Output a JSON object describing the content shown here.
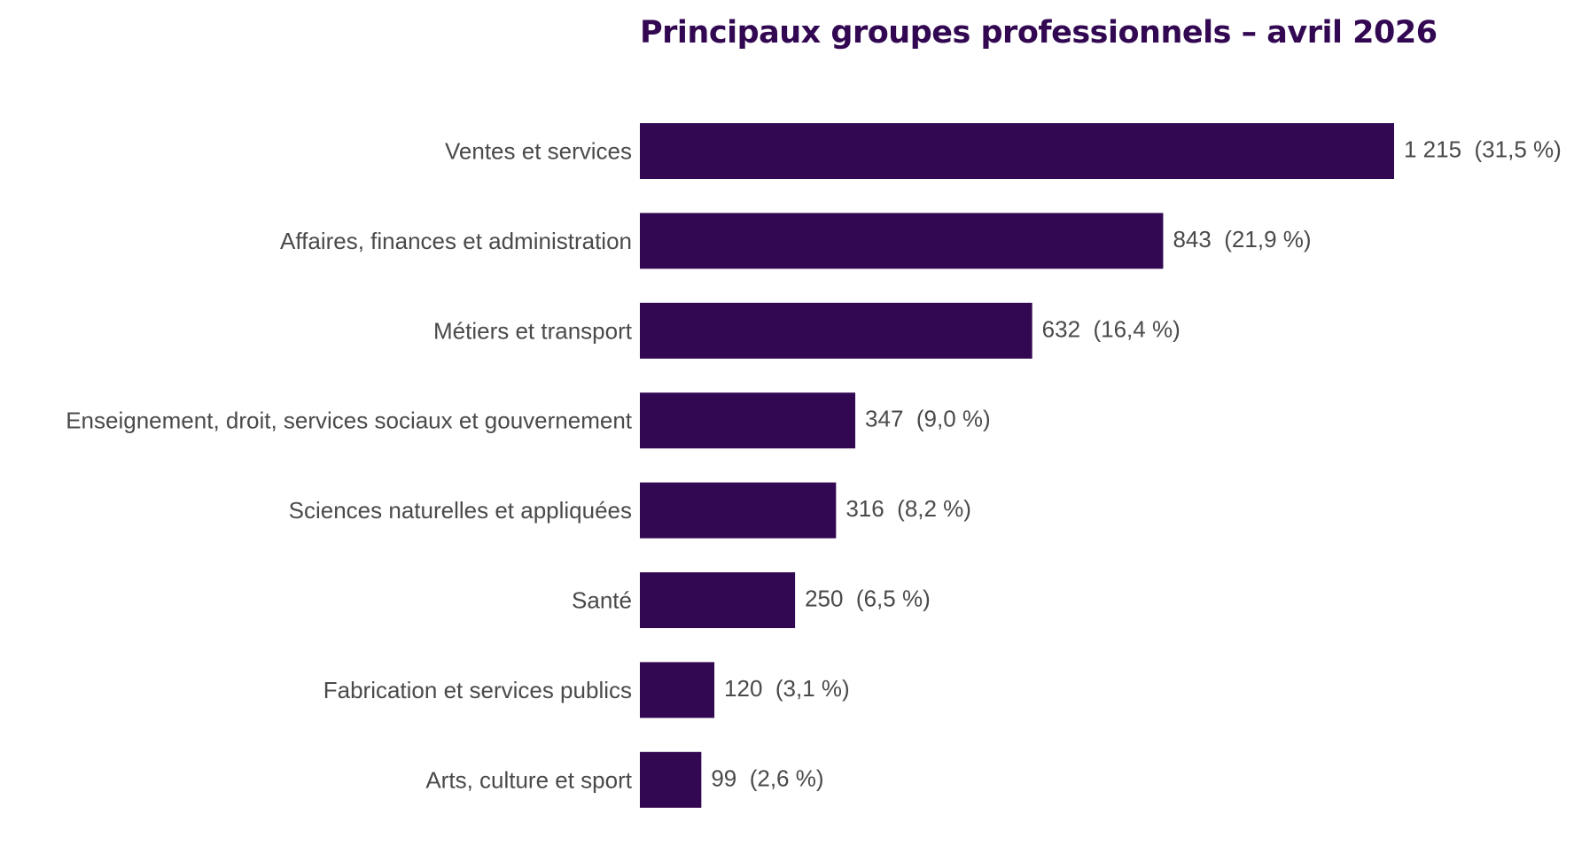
{
  "chart_data": {
    "type": "bar",
    "orientation": "horizontal",
    "title": "Principaux groupes professionnels – avril 2026",
    "xlabel": "",
    "ylabel": "",
    "xlim": [
      0,
      1215
    ],
    "grid": false,
    "legend": "none",
    "categories": [
      "Ventes et services",
      "Affaires, finances et administration",
      "Métiers et transport",
      "Enseignement, droit, services sociaux et gouvernement",
      "Sciences naturelles et appliquées",
      "Santé",
      "Fabrication et services publics",
      "Arts, culture et sport"
    ],
    "values": [
      1215,
      843,
      632,
      347,
      316,
      250,
      120,
      99
    ],
    "data_labels": [
      "1 215  (31,5 %)",
      "843  (21,9 %)",
      "632  (16,4 %)",
      "347  (9,0 %)",
      "316  (8,2 %)",
      "250  (6,5 %)",
      "120  (3,1 %)",
      "99  (2,6 %)"
    ],
    "colors": {
      "bar": "#330852",
      "title": "#330852",
      "label": "#4a4a4a"
    }
  }
}
